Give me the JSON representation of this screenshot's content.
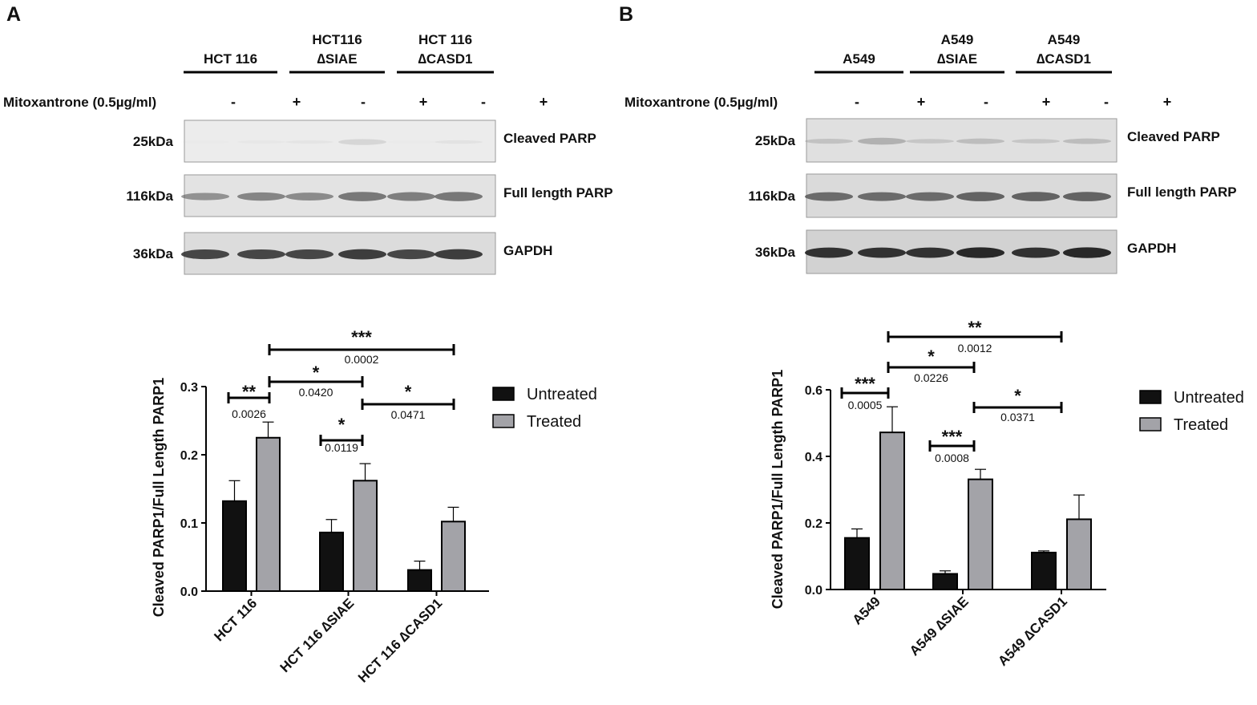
{
  "panels": [
    {
      "letter": "A",
      "mito_label": "Mitoxantrone (0.5µg/ml)",
      "lane_groups": [
        {
          "line1": "",
          "line2": "HCT 116"
        },
        {
          "line1": "HCT116",
          "line2": "∆SIAE"
        },
        {
          "line1": "HCT 116",
          "line2": "∆CASD1"
        }
      ],
      "treatment_signs": [
        "-",
        "+",
        "-",
        "+",
        "-",
        "+"
      ],
      "blots": [
        {
          "kda": "25kDa",
          "protein": "Cleaved PARP",
          "base": "#ececec",
          "band_color": "#bdbdbd",
          "intensity": [
            0.05,
            0.1,
            0.15,
            0.45,
            0.05,
            0.2
          ]
        },
        {
          "kda": "116kDa",
          "protein": "Full length PARP",
          "base": "#e3e3e3",
          "band_color": "#5c5c5c",
          "intensity": [
            0.6,
            0.7,
            0.65,
            0.8,
            0.75,
            0.8
          ]
        },
        {
          "kda": "36kDa",
          "protein": "GAPDH",
          "base": "#dcdcdc",
          "band_color": "#2b2b2b",
          "intensity": [
            0.85,
            0.85,
            0.85,
            0.9,
            0.85,
            0.9
          ]
        }
      ]
    },
    {
      "letter": "B",
      "mito_label": "Mitoxantrone (0.5µg/ml)",
      "lane_groups": [
        {
          "line1": "",
          "line2": "A549"
        },
        {
          "line1": "A549",
          "line2": "∆SIAE"
        },
        {
          "line1": "A549",
          "line2": "∆CASD1"
        }
      ],
      "treatment_signs": [
        "-",
        "+",
        "-",
        "+",
        "-",
        "+"
      ],
      "blots": [
        {
          "kda": "25kDa",
          "protein": "Cleaved PARP",
          "base": "#e0e0e0",
          "band_color": "#8a8a8a",
          "intensity": [
            0.35,
            0.55,
            0.3,
            0.4,
            0.3,
            0.4
          ]
        },
        {
          "kda": "116kDa",
          "protein": "Full length PARP",
          "base": "#dadada",
          "band_color": "#454545",
          "intensity": [
            0.75,
            0.75,
            0.75,
            0.8,
            0.8,
            0.8
          ]
        },
        {
          "kda": "36kDa",
          "protein": "GAPDH",
          "base": "#d2d2d2",
          "band_color": "#1f1f1f",
          "intensity": [
            0.9,
            0.9,
            0.9,
            0.95,
            0.9,
            0.95
          ]
        }
      ]
    }
  ],
  "colors": {
    "untreated": "#111111",
    "treated": "#a3a3a8",
    "axis": "#000000"
  },
  "chart_data": [
    {
      "type": "bar",
      "categories": [
        "HCT 116",
        "HCT 116 ∆SIAE",
        "HCT 116 ∆CASD1"
      ],
      "series": [
        {
          "name": "Untreated",
          "values": [
            0.132,
            0.086,
            0.031
          ],
          "error": [
            0.03,
            0.019,
            0.013
          ]
        },
        {
          "name": "Treated",
          "values": [
            0.225,
            0.162,
            0.102
          ],
          "error": [
            0.023,
            0.025,
            0.021
          ]
        }
      ],
      "ylabel": "Cleaved PARP1/Full Length PARP1",
      "ylim": [
        0,
        0.3
      ],
      "yticks": [
        "0.0",
        "0.1",
        "0.2",
        "0.3"
      ],
      "legend": "right",
      "annotations": [
        {
          "stars": "**",
          "p": "0.0026"
        },
        {
          "stars": "*",
          "p": "0.0420"
        },
        {
          "stars": "*",
          "p": "0.0119"
        },
        {
          "stars": "***",
          "p": "0.0002"
        },
        {
          "stars": "*",
          "p": "0.0471"
        }
      ]
    },
    {
      "type": "bar",
      "categories": [
        "A549",
        "A549 ∆SIAE",
        "A549 ∆CASD1"
      ],
      "series": [
        {
          "name": "Untreated",
          "values": [
            0.155,
            0.047,
            0.111
          ],
          "error": [
            0.027,
            0.009,
            0.005
          ]
        },
        {
          "name": "Treated",
          "values": [
            0.472,
            0.331,
            0.211
          ],
          "error": [
            0.077,
            0.03,
            0.073
          ]
        }
      ],
      "ylabel": "Cleaved PARP1/Full Length PARP1",
      "ylim": [
        0,
        0.6
      ],
      "yticks": [
        "0.0",
        "0.2",
        "0.4",
        "0.6"
      ],
      "legend": "right",
      "annotations": [
        {
          "stars": "***",
          "p": "0.0005"
        },
        {
          "stars": "*",
          "p": "0.0226"
        },
        {
          "stars": "***",
          "p": "0.0008"
        },
        {
          "stars": "**",
          "p": "0.0012"
        },
        {
          "stars": "*",
          "p": "0.0371"
        }
      ]
    }
  ]
}
